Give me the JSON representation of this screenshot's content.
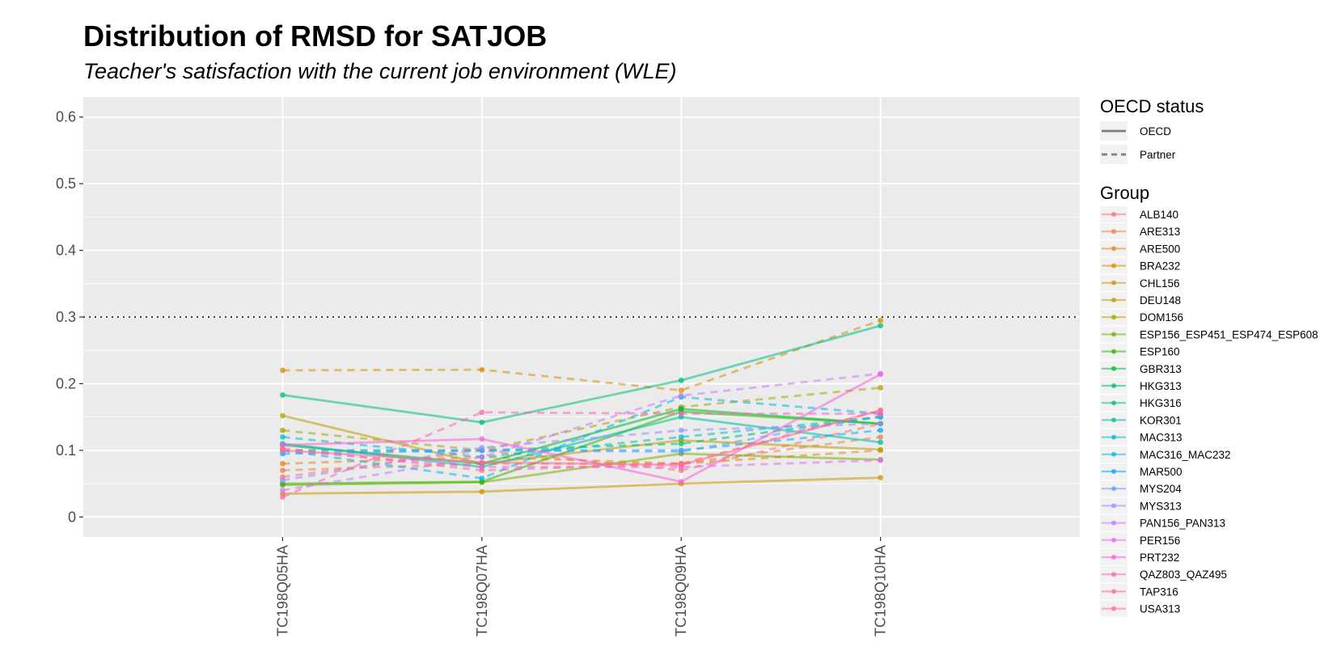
{
  "chart_data": {
    "type": "line",
    "title": "Distribution of RMSD for SATJOB",
    "subtitle": "Teacher's satisfaction with the current job environment (WLE)",
    "xlabel": "",
    "ylabel": "",
    "categories": [
      "TC198Q05HA",
      "TC198Q07HA",
      "TC198Q09HA",
      "TC198Q10HA"
    ],
    "yticks": [
      "0",
      "0.1",
      "0.2",
      "0.3",
      "0.4",
      "0.5",
      "0.6"
    ],
    "ylim": [
      -0.03,
      0.63
    ],
    "reference_line": 0.3,
    "grid": true,
    "legend_position": "right",
    "linetype_legend": {
      "title": "OECD status",
      "items": [
        {
          "label": "OECD",
          "style": "solid"
        },
        {
          "label": "Partner",
          "style": "dashed"
        }
      ]
    },
    "group_legend_title": "Group",
    "series": [
      {
        "name": "ALB140",
        "color": "#F8766D",
        "status": "Partner",
        "values": [
          0.06,
          0.1,
          0.07,
          0.14
        ]
      },
      {
        "name": "ARE313",
        "color": "#F27D52",
        "status": "Partner",
        "values": [
          0.07,
          0.08,
          0.08,
          0.12
        ]
      },
      {
        "name": "ARE500",
        "color": "#E7861B",
        "status": "Partner",
        "values": [
          0.08,
          0.09,
          0.08,
          0.1
        ]
      },
      {
        "name": "BRA232",
        "color": "#DB8E00",
        "status": "Partner",
        "values": [
          0.22,
          0.221,
          0.19,
          0.295
        ]
      },
      {
        "name": "CHL156",
        "color": "#CD9600",
        "status": "OECD",
        "values": [
          0.035,
          0.038,
          0.05,
          0.059
        ]
      },
      {
        "name": "DEU148",
        "color": "#BE9C00",
        "status": "OECD",
        "values": [
          0.152,
          0.08,
          0.115,
          0.101
        ]
      },
      {
        "name": "DOM156",
        "color": "#ADA200",
        "status": "Partner",
        "values": [
          0.13,
          0.1,
          0.165,
          0.194
        ]
      },
      {
        "name": "ESP156_ESP451_ESP474_ESP608",
        "color": "#7CAE00",
        "status": "OECD",
        "values": [
          0.048,
          0.052,
          0.095,
          0.086
        ]
      },
      {
        "name": "ESP160",
        "color": "#39B600",
        "status": "OECD",
        "values": [
          0.05,
          0.053,
          0.158,
          0.14
        ]
      },
      {
        "name": "GBR313",
        "color": "#00BA38",
        "status": "OECD",
        "values": [
          0.108,
          0.08,
          0.162,
          0.14
        ]
      },
      {
        "name": "HKG313",
        "color": "#00BE67",
        "status": "Partner",
        "values": [
          0.1,
          0.1,
          0.11,
          0.15
        ]
      },
      {
        "name": "HKG316",
        "color": "#00BF7D",
        "status": "OECD",
        "values": [
          0.183,
          0.142,
          0.205,
          0.287
        ]
      },
      {
        "name": "KOR301",
        "color": "#00C1A3",
        "status": "OECD",
        "values": [
          0.11,
          0.075,
          0.15,
          0.112
        ]
      },
      {
        "name": "MAC313",
        "color": "#00BFC4",
        "status": "Partner",
        "values": [
          0.12,
          0.09,
          0.12,
          0.15
        ]
      },
      {
        "name": "MAC316_MAC232",
        "color": "#00B8E7",
        "status": "Partner",
        "values": [
          0.1,
          0.058,
          0.18,
          0.155
        ]
      },
      {
        "name": "MAR500",
        "color": "#00A9FF",
        "status": "Partner",
        "values": [
          0.095,
          0.1,
          0.1,
          0.13
        ]
      },
      {
        "name": "MYS204",
        "color": "#619CFF",
        "status": "Partner",
        "values": [
          0.1,
          0.1,
          0.098,
          0.152
        ]
      },
      {
        "name": "MYS313",
        "color": "#9590FF",
        "status": "Partner",
        "values": [
          0.055,
          0.104,
          0.13,
          0.14
        ]
      },
      {
        "name": "PAN156_PAN313",
        "color": "#C77CFF",
        "status": "Partner",
        "values": [
          0.04,
          0.09,
          0.182,
          0.215
        ]
      },
      {
        "name": "PER156",
        "color": "#E76BF3",
        "status": "Partner",
        "values": [
          0.1,
          0.075,
          0.075,
          0.085
        ]
      },
      {
        "name": "PRT232",
        "color": "#FA62DB",
        "status": "OECD",
        "values": [
          0.108,
          0.117,
          0.053,
          0.214
        ]
      },
      {
        "name": "QAZ803_QAZ495",
        "color": "#FF62BC",
        "status": "Partner",
        "values": [
          0.03,
          0.157,
          0.155,
          0.155
        ]
      },
      {
        "name": "TAP316",
        "color": "#FF6C91",
        "status": "Partner",
        "values": [
          0.103,
          0.07,
          0.08,
          0.16
        ]
      },
      {
        "name": "USA313",
        "color": "#FF6C91",
        "status": "OECD",
        "values": [
          0.1,
          0.082,
          0.078,
          0.16
        ]
      }
    ]
  }
}
